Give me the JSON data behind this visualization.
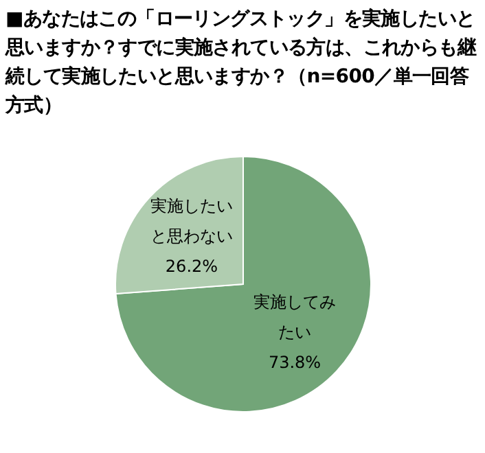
{
  "chart_data": {
    "type": "pie",
    "title": "■あなたはこの「ローリングストック」を実施したいと思いますか？すでに実施されている方は、これからも継続して実施したいと思いますか？（n=600／単一回答方式）",
    "categories": [
      "実施してみたい",
      "実施したいと思わない"
    ],
    "values": [
      73.8,
      26.2
    ],
    "colors": [
      "#72a578",
      "#b0cdb0"
    ],
    "value_labels": [
      "73.8%",
      "26.2%"
    ]
  }
}
